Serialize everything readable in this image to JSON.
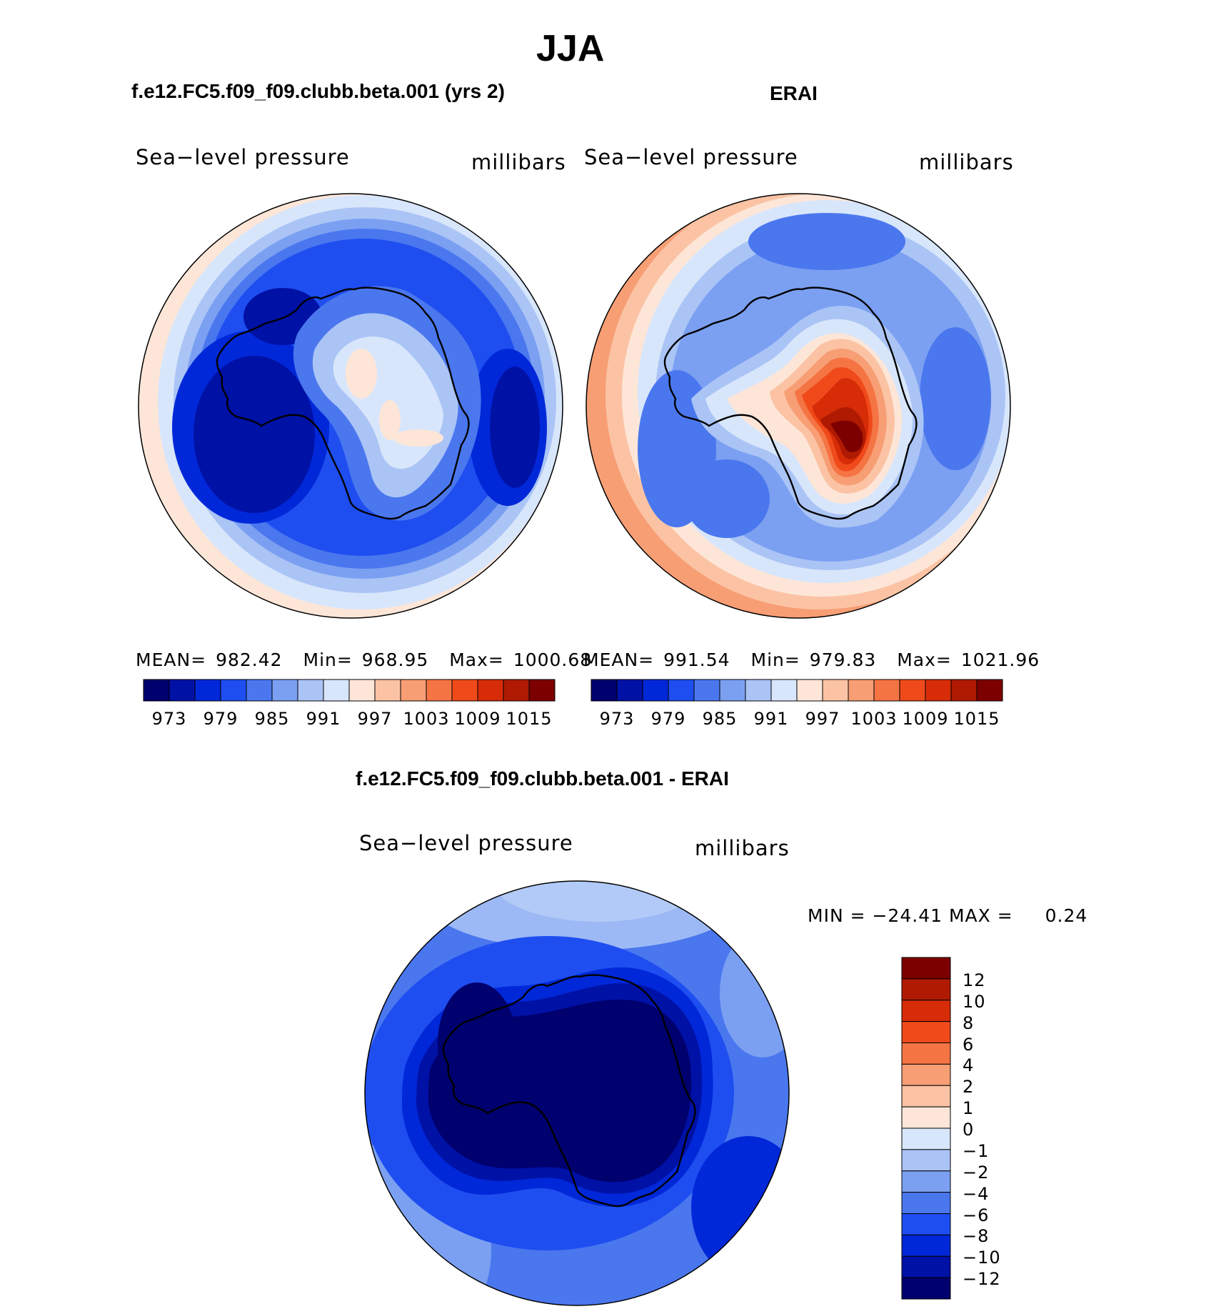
{
  "title": "JJA",
  "panels": [
    {
      "id": "model",
      "title": "f.e12.FC5.f09_f09.clubb.beta.001 (yrs 2)",
      "variable": "Sea−level pressure",
      "units": "millibars",
      "stats": {
        "mean_label": "MEAN=",
        "mean": "982.42",
        "min_label": "Min=",
        "min": "968.95",
        "max_label": "Max=",
        "max": "1000.68"
      }
    },
    {
      "id": "obs",
      "title": "ERAI",
      "variable": "Sea−level pressure",
      "units": "millibars",
      "stats": {
        "mean_label": "MEAN=",
        "mean": "991.54",
        "min_label": "Min=",
        "min": "979.83",
        "max_label": "Max=",
        "max": "1021.96"
      }
    },
    {
      "id": "diff",
      "title": "f.e12.FC5.f09_f09.clubb.beta.001 - ERAI",
      "variable": "Sea−level pressure",
      "units": "millibars",
      "stats_text": "MIN = −24.41 MAX =",
      "stats_max": "0.24"
    }
  ],
  "colorbar_abs": {
    "colors": [
      "#00006e",
      "#0011a6",
      "#0028d8",
      "#1e4ef0",
      "#4a77ee",
      "#7ba0f2",
      "#abc4f6",
      "#d8e6fb",
      "#fde6d8",
      "#fbc3a4",
      "#f79e75",
      "#f57444",
      "#f04a1a",
      "#d72c08",
      "#b01a02",
      "#7c0000"
    ],
    "tick_labels": [
      "973",
      "979",
      "985",
      "991",
      "997",
      "1003",
      "1009",
      "1015"
    ]
  },
  "colorbar_diff": {
    "colors": [
      "#7c0000",
      "#b01a02",
      "#d72c08",
      "#f04a1a",
      "#f57444",
      "#f79e75",
      "#fbc3a4",
      "#fde6d8",
      "#d8e6fb",
      "#abc4f6",
      "#7ba0f2",
      "#4a77ee",
      "#1e4ef0",
      "#0028d8",
      "#0011a6",
      "#00006e"
    ],
    "tick_labels": [
      "12",
      "10",
      "8",
      "6",
      "4",
      "2",
      "1",
      "0",
      "−1",
      "−2",
      "−4",
      "−6",
      "−8",
      "−10",
      "−12"
    ]
  }
}
